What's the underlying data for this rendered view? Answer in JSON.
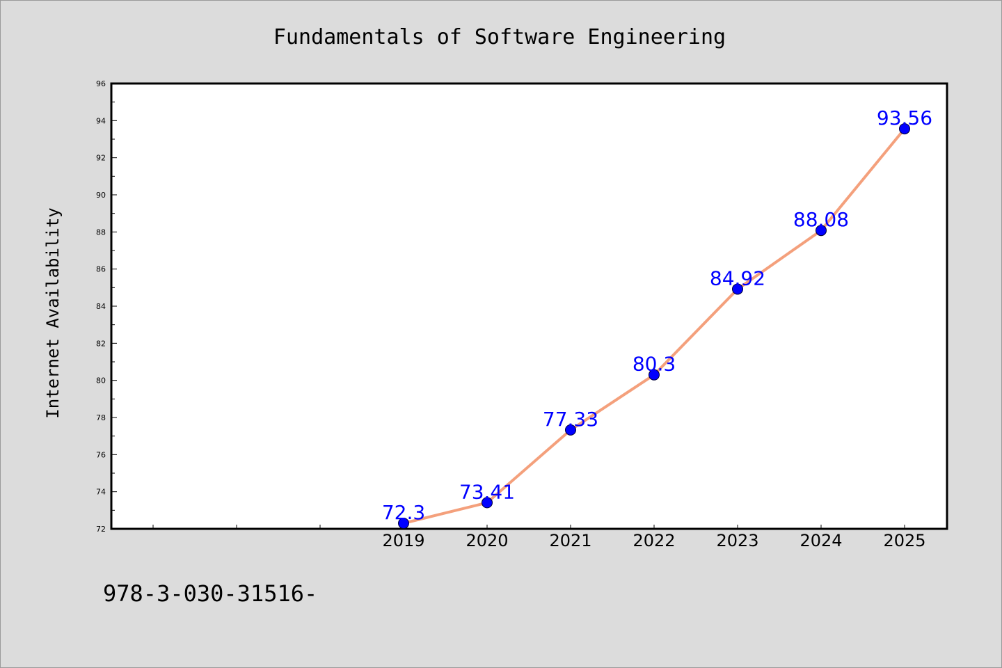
{
  "chart_data": {
    "type": "line",
    "title": "Fundamentals of Software Engineering",
    "xlabel": "",
    "ylabel": "Internet Availability",
    "x": [
      "2019",
      "2020",
      "2021",
      "2022",
      "2023",
      "2024",
      "2025"
    ],
    "series": [
      {
        "values": [
          72.3,
          73.41,
          77.33,
          80.3,
          84.92,
          88.08,
          93.56
        ],
        "data_labels": [
          "72.3",
          "73.41",
          "77.33",
          "80.3",
          "84.92",
          "88.08",
          "93.56"
        ]
      }
    ],
    "ylim": [
      72,
      96
    ],
    "yticks": [
      "72",
      "74",
      "76",
      "78",
      "80",
      "82",
      "84",
      "86",
      "88",
      "90",
      "92",
      "94",
      "96"
    ],
    "grid": false,
    "legend": "none",
    "colors": {
      "line": "#f4a07c",
      "marker": "#0000ff",
      "label": "#0000ff",
      "plot_background": "#ffffff",
      "figure_background": "#dcdcdc"
    }
  },
  "footer": {
    "text": "978-3-030-31516-"
  }
}
